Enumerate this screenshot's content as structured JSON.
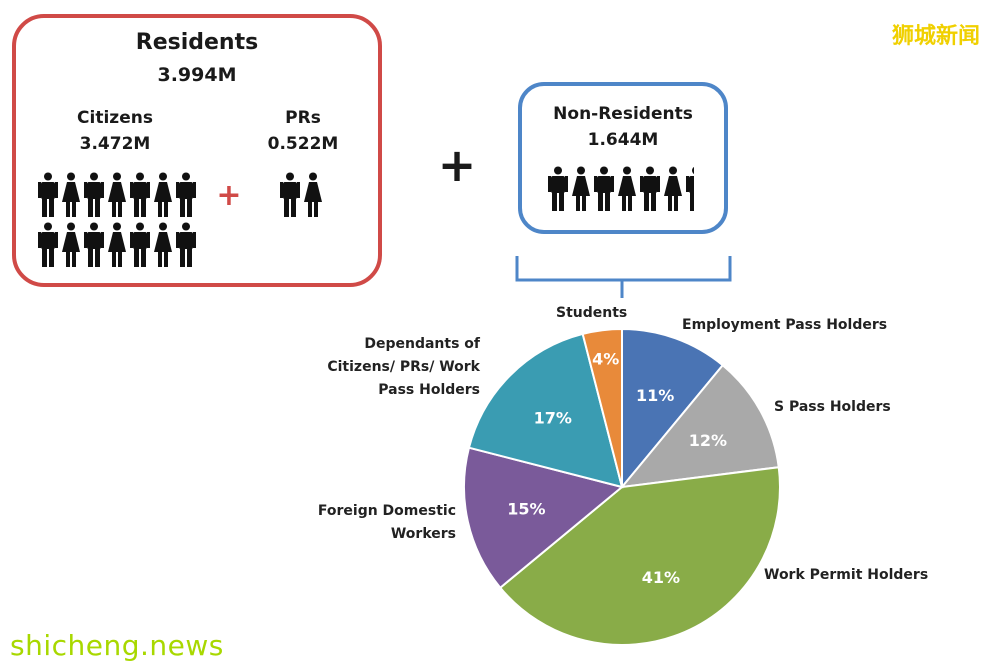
{
  "watermark": {
    "cn": "狮城新闻",
    "en": "shicheng.news"
  },
  "residents": {
    "title": "Residents",
    "total": "3.994M",
    "citizens": {
      "label": "Citizens",
      "value": "3.472M"
    },
    "prs": {
      "label": "PRs",
      "value": "0.522M"
    },
    "plus": "+"
  },
  "plus_sign": "+",
  "non_residents": {
    "label": "Non-Residents",
    "value": "1.644M"
  },
  "colors": {
    "residents_border": "#d04a47",
    "non_residents_border": "#4e86c8",
    "plus_red": "#d04a47"
  },
  "chart_data": {
    "type": "pie",
    "slices": [
      {
        "label": "Employment Pass Holders",
        "value": 11,
        "display": "11%",
        "color": "#4a74b4"
      },
      {
        "label": "S Pass Holders",
        "value": 12,
        "display": "12%",
        "color": "#a9a9a9"
      },
      {
        "label": "Work Permit Holders",
        "value": 41,
        "display": "41%",
        "color": "#89ac48"
      },
      {
        "label": "Foreign Domestic Workers",
        "value": 15,
        "display": "15%",
        "color": "#7a5a9a"
      },
      {
        "label": "Dependants of Citizens/ PRs/ Work Pass Holders",
        "value": 17,
        "display": "17%",
        "color": "#3a9cb2"
      },
      {
        "label": "Students",
        "value": 4,
        "display": "4%",
        "color": "#e88a3a"
      }
    ]
  }
}
